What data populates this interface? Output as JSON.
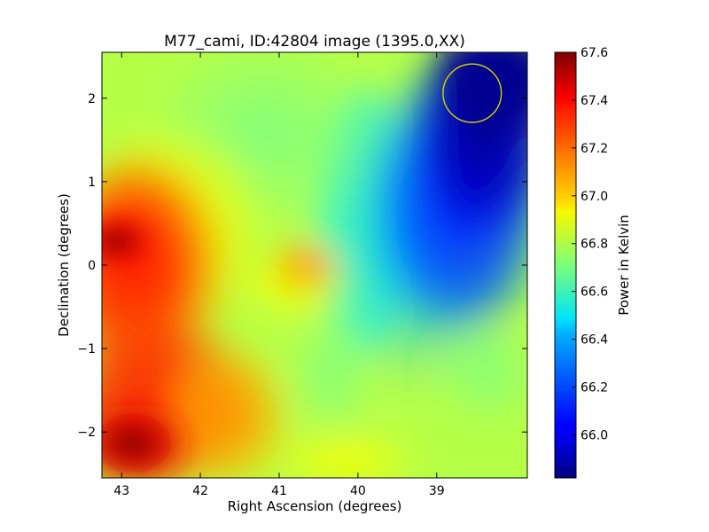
{
  "chart_data": {
    "type": "heatmap",
    "title": "M77_cami, ID:42804 image (1395.0,XX)",
    "xlabel": "Right Ascension (degrees)",
    "ylabel": "Declination (degrees)",
    "colorbar_label": "Power in Kelvin",
    "colormap": "jet",
    "xlim": [
      43.25,
      37.85
    ],
    "ylim": [
      -2.55,
      2.55
    ],
    "x_ticks": [
      43,
      42,
      41,
      40,
      39
    ],
    "x_tick_labels": [
      "43",
      "42",
      "41",
      "40",
      "39"
    ],
    "y_ticks": [
      2,
      1,
      0,
      -1,
      -2
    ],
    "y_tick_labels": [
      "2",
      "1",
      "0",
      "−1",
      "−2"
    ],
    "color_range": [
      65.82,
      67.6
    ],
    "colorbar_ticks": [
      67.6,
      67.4,
      67.2,
      67.0,
      66.8,
      66.6,
      66.4,
      66.2,
      66.0
    ],
    "colorbar_tick_labels": [
      "67.6",
      "67.4",
      "67.2",
      "67.0",
      "66.8",
      "66.6",
      "66.4",
      "66.2",
      "66.0"
    ],
    "field_description": [
      {
        "ra": 42.9,
        "dec": 0.25,
        "value": 67.6
      },
      {
        "ra": 42.8,
        "dec": -2.2,
        "value": 67.6
      },
      {
        "ra": 40.8,
        "dec": -0.05,
        "value": 67.05
      },
      {
        "ra": 41.4,
        "dec": 1.8,
        "value": 66.62
      },
      {
        "ra": 40.6,
        "dec": -1.4,
        "value": 66.75
      },
      {
        "ra": 38.4,
        "dec": 1.9,
        "value": 65.82
      },
      {
        "ra": 38.2,
        "dec": 0.0,
        "value": 66.0
      }
    ],
    "beam_circle": {
      "ra": 38.55,
      "dec": 2.06,
      "radius_deg": 0.37,
      "color": "#d4d400"
    }
  }
}
